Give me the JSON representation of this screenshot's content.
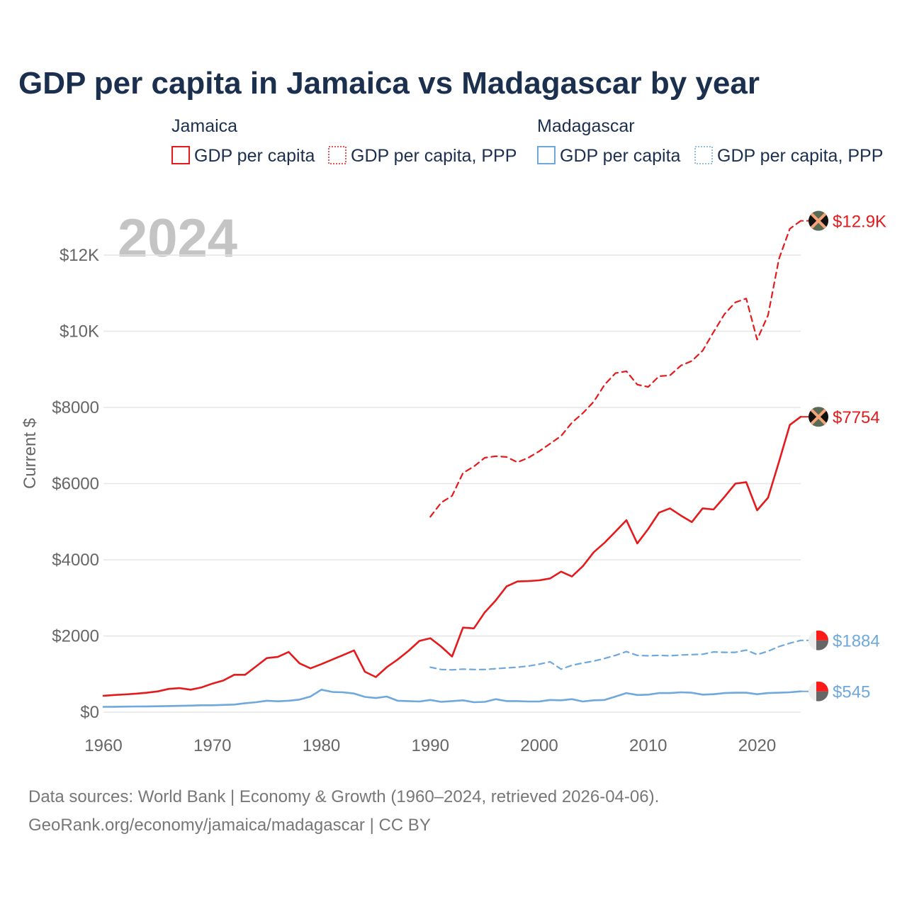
{
  "chart_data": {
    "type": "line",
    "title": "GDP per capita in Jamaica vs Madagascar by year",
    "ylabel": "Current $",
    "xlabel": "",
    "xlim": [
      1960,
      2024
    ],
    "ylim": [
      0,
      13500
    ],
    "x_ticks": [
      1960,
      1970,
      1980,
      1990,
      2000,
      2010,
      2020
    ],
    "y_ticks": [
      {
        "value": 0,
        "label": "$0"
      },
      {
        "value": 2000,
        "label": "$2000"
      },
      {
        "value": 4000,
        "label": "$4000"
      },
      {
        "value": 6000,
        "label": "$6000"
      },
      {
        "value": 8000,
        "label": "$8000"
      },
      {
        "value": 10000,
        "label": "$10K"
      },
      {
        "value": 12000,
        "label": "$12K"
      }
    ],
    "current_year": "2024",
    "legend": {
      "groups": [
        {
          "name": "Jamaica",
          "items": [
            {
              "label": "GDP per capita",
              "color": "#e41a1c",
              "style": "solid"
            },
            {
              "label": "GDP per capita, PPP",
              "color": "#e41a1c",
              "style": "dotted"
            }
          ]
        },
        {
          "name": "Madagascar",
          "items": [
            {
              "label": "GDP per capita",
              "color": "#6fa8dc",
              "style": "solid"
            },
            {
              "label": "GDP per capita, PPP",
              "color": "#6fa8dc",
              "style": "dotted"
            }
          ]
        }
      ]
    },
    "series": [
      {
        "name": "Jamaica GDP per capita",
        "color": "#e41a1c",
        "dashed": false,
        "marker": "jamaica",
        "end_label": "$7754",
        "start_year": 1960,
        "values": [
          430,
          450,
          465,
          485,
          510,
          545,
          610,
          630,
          590,
          650,
          750,
          830,
          980,
          980,
          1200,
          1420,
          1450,
          1580,
          1280,
          1150,
          1260,
          1380,
          1500,
          1620,
          1060,
          920,
          1180,
          1380,
          1610,
          1870,
          1940,
          1720,
          1460,
          2220,
          2200,
          2620,
          2930,
          3300,
          3430,
          3440,
          3460,
          3510,
          3690,
          3560,
          3830,
          4200,
          4450,
          4740,
          5040,
          4430,
          4810,
          5240,
          5350,
          5160,
          4990,
          5350,
          5320,
          5650,
          6000,
          6040,
          5300,
          5630,
          6570,
          7540,
          7754
        ]
      },
      {
        "name": "Jamaica GDP per capita, PPP",
        "color": "#e41a1c",
        "dashed": true,
        "marker": "jamaica",
        "end_label": "$12.9K",
        "start_year": 1990,
        "values": [
          5130,
          5500,
          5680,
          6280,
          6450,
          6680,
          6720,
          6700,
          6560,
          6680,
          6850,
          7050,
          7250,
          7600,
          7850,
          8150,
          8600,
          8900,
          8950,
          8600,
          8540,
          8820,
          8840,
          9100,
          9220,
          9490,
          9980,
          10450,
          10760,
          10860,
          9780,
          10420,
          11900,
          12690,
          12900
        ]
      },
      {
        "name": "Madagascar GDP per capita",
        "color": "#6fa8dc",
        "dashed": false,
        "marker": "madagascar",
        "end_label": "$545",
        "start_year": 1960,
        "values": [
          140,
          142,
          145,
          148,
          150,
          155,
          160,
          165,
          172,
          180,
          180,
          190,
          200,
          235,
          260,
          300,
          285,
          300,
          330,
          410,
          590,
          530,
          520,
          490,
          400,
          370,
          410,
          300,
          290,
          280,
          320,
          270,
          290,
          310,
          260,
          270,
          340,
          290,
          290,
          280,
          280,
          320,
          310,
          340,
          280,
          310,
          320,
          410,
          500,
          450,
          460,
          500,
          500,
          520,
          510,
          460,
          470,
          500,
          510,
          510,
          470,
          500,
          510,
          520,
          545
        ]
      },
      {
        "name": "Madagascar GDP per capita, PPP",
        "color": "#6fa8dc",
        "dashed": true,
        "marker": "madagascar",
        "end_label": "$1884",
        "start_year": 1990,
        "values": [
          1180,
          1120,
          1110,
          1130,
          1120,
          1120,
          1140,
          1160,
          1180,
          1210,
          1260,
          1320,
          1130,
          1230,
          1290,
          1340,
          1410,
          1490,
          1590,
          1490,
          1480,
          1490,
          1480,
          1500,
          1510,
          1520,
          1580,
          1570,
          1570,
          1630,
          1510,
          1600,
          1720,
          1810,
          1884
        ]
      }
    ]
  },
  "source": {
    "line1": "Data sources: World Bank | Economy & Growth (1960–2024, retrieved 2026-04-06).",
    "line2": "GeoRank.org/economy/jamaica/madagascar | CC BY"
  }
}
